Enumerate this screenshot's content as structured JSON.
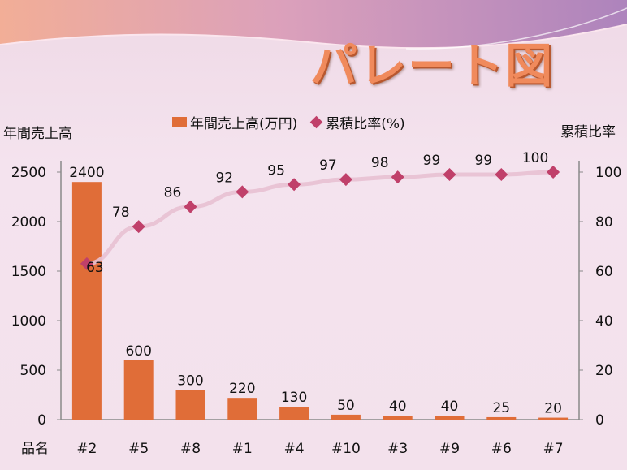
{
  "title": "パレート図",
  "colors": {
    "bar": "#e06d38",
    "marker": "#c0406a",
    "line": "#e8c0d2"
  },
  "chart_data": {
    "type": "bar+line",
    "title": "パレート図",
    "categories": [
      "#2",
      "#5",
      "#8",
      "#1",
      "#4",
      "#10",
      "#3",
      "#9",
      "#6",
      "#7"
    ],
    "xlabel": "品名",
    "y_left": {
      "label": "年間売上高",
      "range": [
        0,
        2500
      ],
      "ticks": [
        0,
        500,
        1000,
        1500,
        2000,
        2500
      ]
    },
    "y_right": {
      "label": "累積比率",
      "range": [
        0,
        100
      ],
      "ticks": [
        0,
        20,
        40,
        60,
        80,
        100
      ]
    },
    "series": [
      {
        "name": "年間売上高(万円)",
        "type": "bar",
        "axis": "left",
        "values": [
          2400,
          600,
          300,
          220,
          130,
          50,
          40,
          40,
          25,
          20
        ]
      },
      {
        "name": "累積比率(%)",
        "type": "line",
        "axis": "right",
        "values": [
          63,
          78,
          86,
          92,
          95,
          97,
          98,
          99,
          99,
          100
        ]
      }
    ],
    "legend": "top-center"
  }
}
